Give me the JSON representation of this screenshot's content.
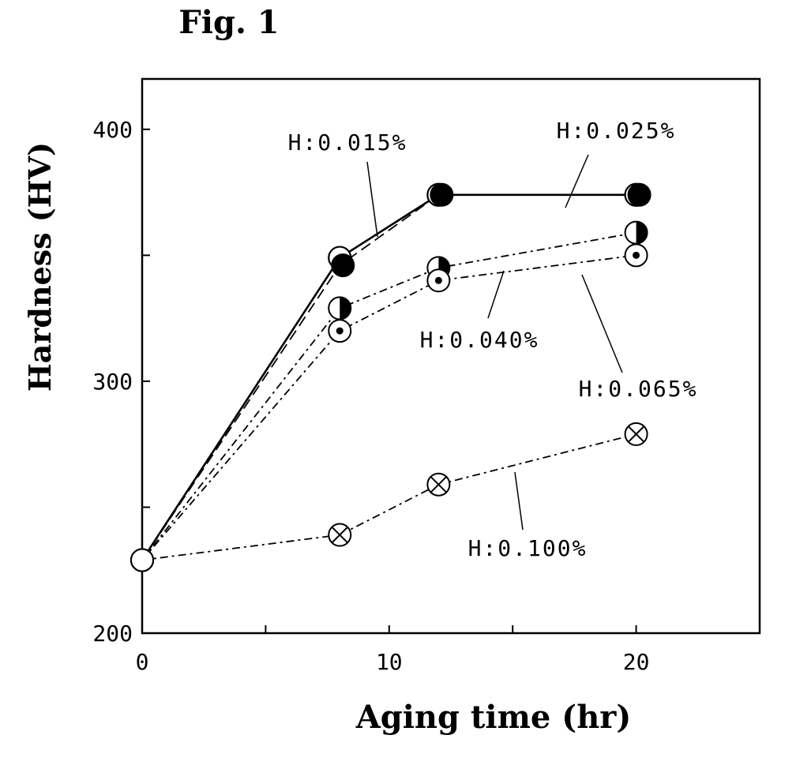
{
  "figure_label": "Fig. 1",
  "chart_data": {
    "type": "line",
    "title": "",
    "xlabel": "Aging time (hr)",
    "ylabel": "Hardness (HV)",
    "xlim": [
      0,
      25
    ],
    "ylim": [
      200,
      420
    ],
    "x_ticks": [
      0,
      5,
      10,
      15,
      20,
      25
    ],
    "x_tick_labels": [
      "0",
      "10",
      "20"
    ],
    "x_tick_label_values": [
      0,
      10,
      20
    ],
    "y_ticks": [
      200,
      250,
      300,
      350,
      400
    ],
    "y_tick_labels": [
      "200",
      "300",
      "400"
    ],
    "y_tick_label_values": [
      200,
      300,
      400
    ],
    "grid": false,
    "legend": "inline annotations with leader lines",
    "series": [
      {
        "name": "H:0.015%",
        "marker": "open-circle",
        "line": "solid",
        "x": [
          0,
          8,
          12,
          20
        ],
        "y": [
          229,
          349,
          374,
          374
        ]
      },
      {
        "name": "H:0.025%",
        "marker": "filled-circle",
        "line": "dashed",
        "x": [
          0,
          8,
          12,
          20
        ],
        "y": [
          229,
          346,
          374,
          374
        ]
      },
      {
        "name": "H:0.040%",
        "marker": "half-filled-circle",
        "line": "dash-dot",
        "x": [
          0,
          8,
          12,
          20
        ],
        "y": [
          229,
          329,
          345,
          359
        ]
      },
      {
        "name": "H:0.065%",
        "marker": "dotted-circle",
        "line": "dash-dot",
        "x": [
          0,
          8,
          12,
          20
        ],
        "y": [
          229,
          320,
          340,
          350
        ]
      },
      {
        "name": "H:0.100%",
        "marker": "crossed-circle",
        "line": "dash-dot",
        "x": [
          0,
          8,
          12,
          20
        ],
        "y": [
          229,
          239,
          259,
          279
        ]
      }
    ]
  }
}
